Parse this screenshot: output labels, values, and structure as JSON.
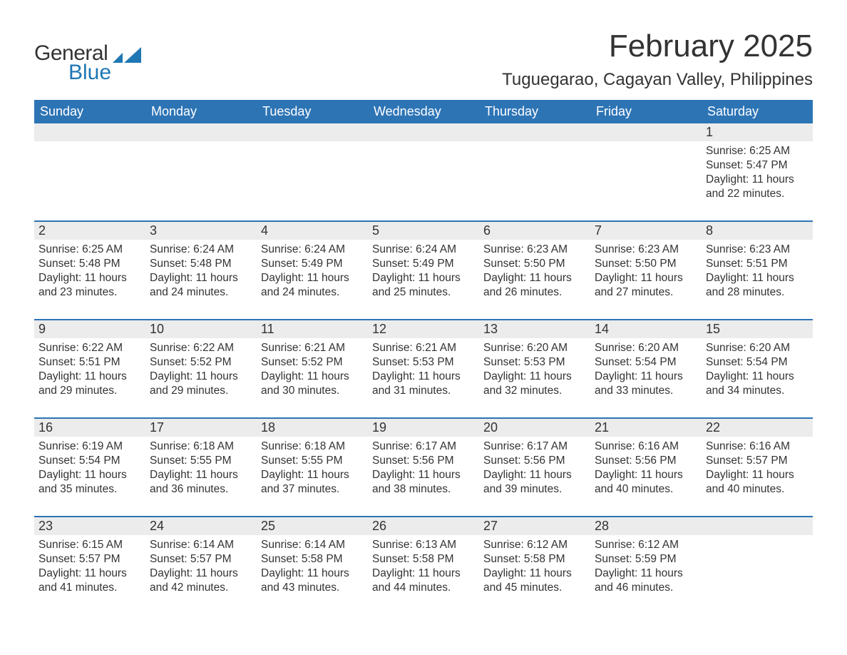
{
  "logo": {
    "word1": "General",
    "word2": "Blue",
    "icon_color": "#1f77b4",
    "text_color": "#333333"
  },
  "title": "February 2025",
  "subtitle": "Tuguegarao, Cagayan Valley, Philippines",
  "styling": {
    "header_bg": "#2d74b5",
    "header_text": "#ffffff",
    "daynum_bg": "#ececec",
    "week_divider": "#2d74b5",
    "body_text": "#333333",
    "page_bg": "#ffffff",
    "title_fontsize": 44,
    "subtitle_fontsize": 24,
    "weekday_fontsize": 18,
    "daynum_fontsize": 18,
    "body_fontsize": 15.5
  },
  "weekdays": [
    "Sunday",
    "Monday",
    "Tuesday",
    "Wednesday",
    "Thursday",
    "Friday",
    "Saturday"
  ],
  "weeks": [
    [
      {
        "empty": true
      },
      {
        "empty": true
      },
      {
        "empty": true
      },
      {
        "empty": true
      },
      {
        "empty": true
      },
      {
        "empty": true
      },
      {
        "num": "1",
        "sunrise": "Sunrise: 6:25 AM",
        "sunset": "Sunset: 5:47 PM",
        "day1": "Daylight: 11 hours",
        "day2": "and 22 minutes."
      }
    ],
    [
      {
        "num": "2",
        "sunrise": "Sunrise: 6:25 AM",
        "sunset": "Sunset: 5:48 PM",
        "day1": "Daylight: 11 hours",
        "day2": "and 23 minutes."
      },
      {
        "num": "3",
        "sunrise": "Sunrise: 6:24 AM",
        "sunset": "Sunset: 5:48 PM",
        "day1": "Daylight: 11 hours",
        "day2": "and 24 minutes."
      },
      {
        "num": "4",
        "sunrise": "Sunrise: 6:24 AM",
        "sunset": "Sunset: 5:49 PM",
        "day1": "Daylight: 11 hours",
        "day2": "and 24 minutes."
      },
      {
        "num": "5",
        "sunrise": "Sunrise: 6:24 AM",
        "sunset": "Sunset: 5:49 PM",
        "day1": "Daylight: 11 hours",
        "day2": "and 25 minutes."
      },
      {
        "num": "6",
        "sunrise": "Sunrise: 6:23 AM",
        "sunset": "Sunset: 5:50 PM",
        "day1": "Daylight: 11 hours",
        "day2": "and 26 minutes."
      },
      {
        "num": "7",
        "sunrise": "Sunrise: 6:23 AM",
        "sunset": "Sunset: 5:50 PM",
        "day1": "Daylight: 11 hours",
        "day2": "and 27 minutes."
      },
      {
        "num": "8",
        "sunrise": "Sunrise: 6:23 AM",
        "sunset": "Sunset: 5:51 PM",
        "day1": "Daylight: 11 hours",
        "day2": "and 28 minutes."
      }
    ],
    [
      {
        "num": "9",
        "sunrise": "Sunrise: 6:22 AM",
        "sunset": "Sunset: 5:51 PM",
        "day1": "Daylight: 11 hours",
        "day2": "and 29 minutes."
      },
      {
        "num": "10",
        "sunrise": "Sunrise: 6:22 AM",
        "sunset": "Sunset: 5:52 PM",
        "day1": "Daylight: 11 hours",
        "day2": "and 29 minutes."
      },
      {
        "num": "11",
        "sunrise": "Sunrise: 6:21 AM",
        "sunset": "Sunset: 5:52 PM",
        "day1": "Daylight: 11 hours",
        "day2": "and 30 minutes."
      },
      {
        "num": "12",
        "sunrise": "Sunrise: 6:21 AM",
        "sunset": "Sunset: 5:53 PM",
        "day1": "Daylight: 11 hours",
        "day2": "and 31 minutes."
      },
      {
        "num": "13",
        "sunrise": "Sunrise: 6:20 AM",
        "sunset": "Sunset: 5:53 PM",
        "day1": "Daylight: 11 hours",
        "day2": "and 32 minutes."
      },
      {
        "num": "14",
        "sunrise": "Sunrise: 6:20 AM",
        "sunset": "Sunset: 5:54 PM",
        "day1": "Daylight: 11 hours",
        "day2": "and 33 minutes."
      },
      {
        "num": "15",
        "sunrise": "Sunrise: 6:20 AM",
        "sunset": "Sunset: 5:54 PM",
        "day1": "Daylight: 11 hours",
        "day2": "and 34 minutes."
      }
    ],
    [
      {
        "num": "16",
        "sunrise": "Sunrise: 6:19 AM",
        "sunset": "Sunset: 5:54 PM",
        "day1": "Daylight: 11 hours",
        "day2": "and 35 minutes."
      },
      {
        "num": "17",
        "sunrise": "Sunrise: 6:18 AM",
        "sunset": "Sunset: 5:55 PM",
        "day1": "Daylight: 11 hours",
        "day2": "and 36 minutes."
      },
      {
        "num": "18",
        "sunrise": "Sunrise: 6:18 AM",
        "sunset": "Sunset: 5:55 PM",
        "day1": "Daylight: 11 hours",
        "day2": "and 37 minutes."
      },
      {
        "num": "19",
        "sunrise": "Sunrise: 6:17 AM",
        "sunset": "Sunset: 5:56 PM",
        "day1": "Daylight: 11 hours",
        "day2": "and 38 minutes."
      },
      {
        "num": "20",
        "sunrise": "Sunrise: 6:17 AM",
        "sunset": "Sunset: 5:56 PM",
        "day1": "Daylight: 11 hours",
        "day2": "and 39 minutes."
      },
      {
        "num": "21",
        "sunrise": "Sunrise: 6:16 AM",
        "sunset": "Sunset: 5:56 PM",
        "day1": "Daylight: 11 hours",
        "day2": "and 40 minutes."
      },
      {
        "num": "22",
        "sunrise": "Sunrise: 6:16 AM",
        "sunset": "Sunset: 5:57 PM",
        "day1": "Daylight: 11 hours",
        "day2": "and 40 minutes."
      }
    ],
    [
      {
        "num": "23",
        "sunrise": "Sunrise: 6:15 AM",
        "sunset": "Sunset: 5:57 PM",
        "day1": "Daylight: 11 hours",
        "day2": "and 41 minutes."
      },
      {
        "num": "24",
        "sunrise": "Sunrise: 6:14 AM",
        "sunset": "Sunset: 5:57 PM",
        "day1": "Daylight: 11 hours",
        "day2": "and 42 minutes."
      },
      {
        "num": "25",
        "sunrise": "Sunrise: 6:14 AM",
        "sunset": "Sunset: 5:58 PM",
        "day1": "Daylight: 11 hours",
        "day2": "and 43 minutes."
      },
      {
        "num": "26",
        "sunrise": "Sunrise: 6:13 AM",
        "sunset": "Sunset: 5:58 PM",
        "day1": "Daylight: 11 hours",
        "day2": "and 44 minutes."
      },
      {
        "num": "27",
        "sunrise": "Sunrise: 6:12 AM",
        "sunset": "Sunset: 5:58 PM",
        "day1": "Daylight: 11 hours",
        "day2": "and 45 minutes."
      },
      {
        "num": "28",
        "sunrise": "Sunrise: 6:12 AM",
        "sunset": "Sunset: 5:59 PM",
        "day1": "Daylight: 11 hours",
        "day2": "and 46 minutes."
      },
      {
        "empty": true
      }
    ]
  ]
}
